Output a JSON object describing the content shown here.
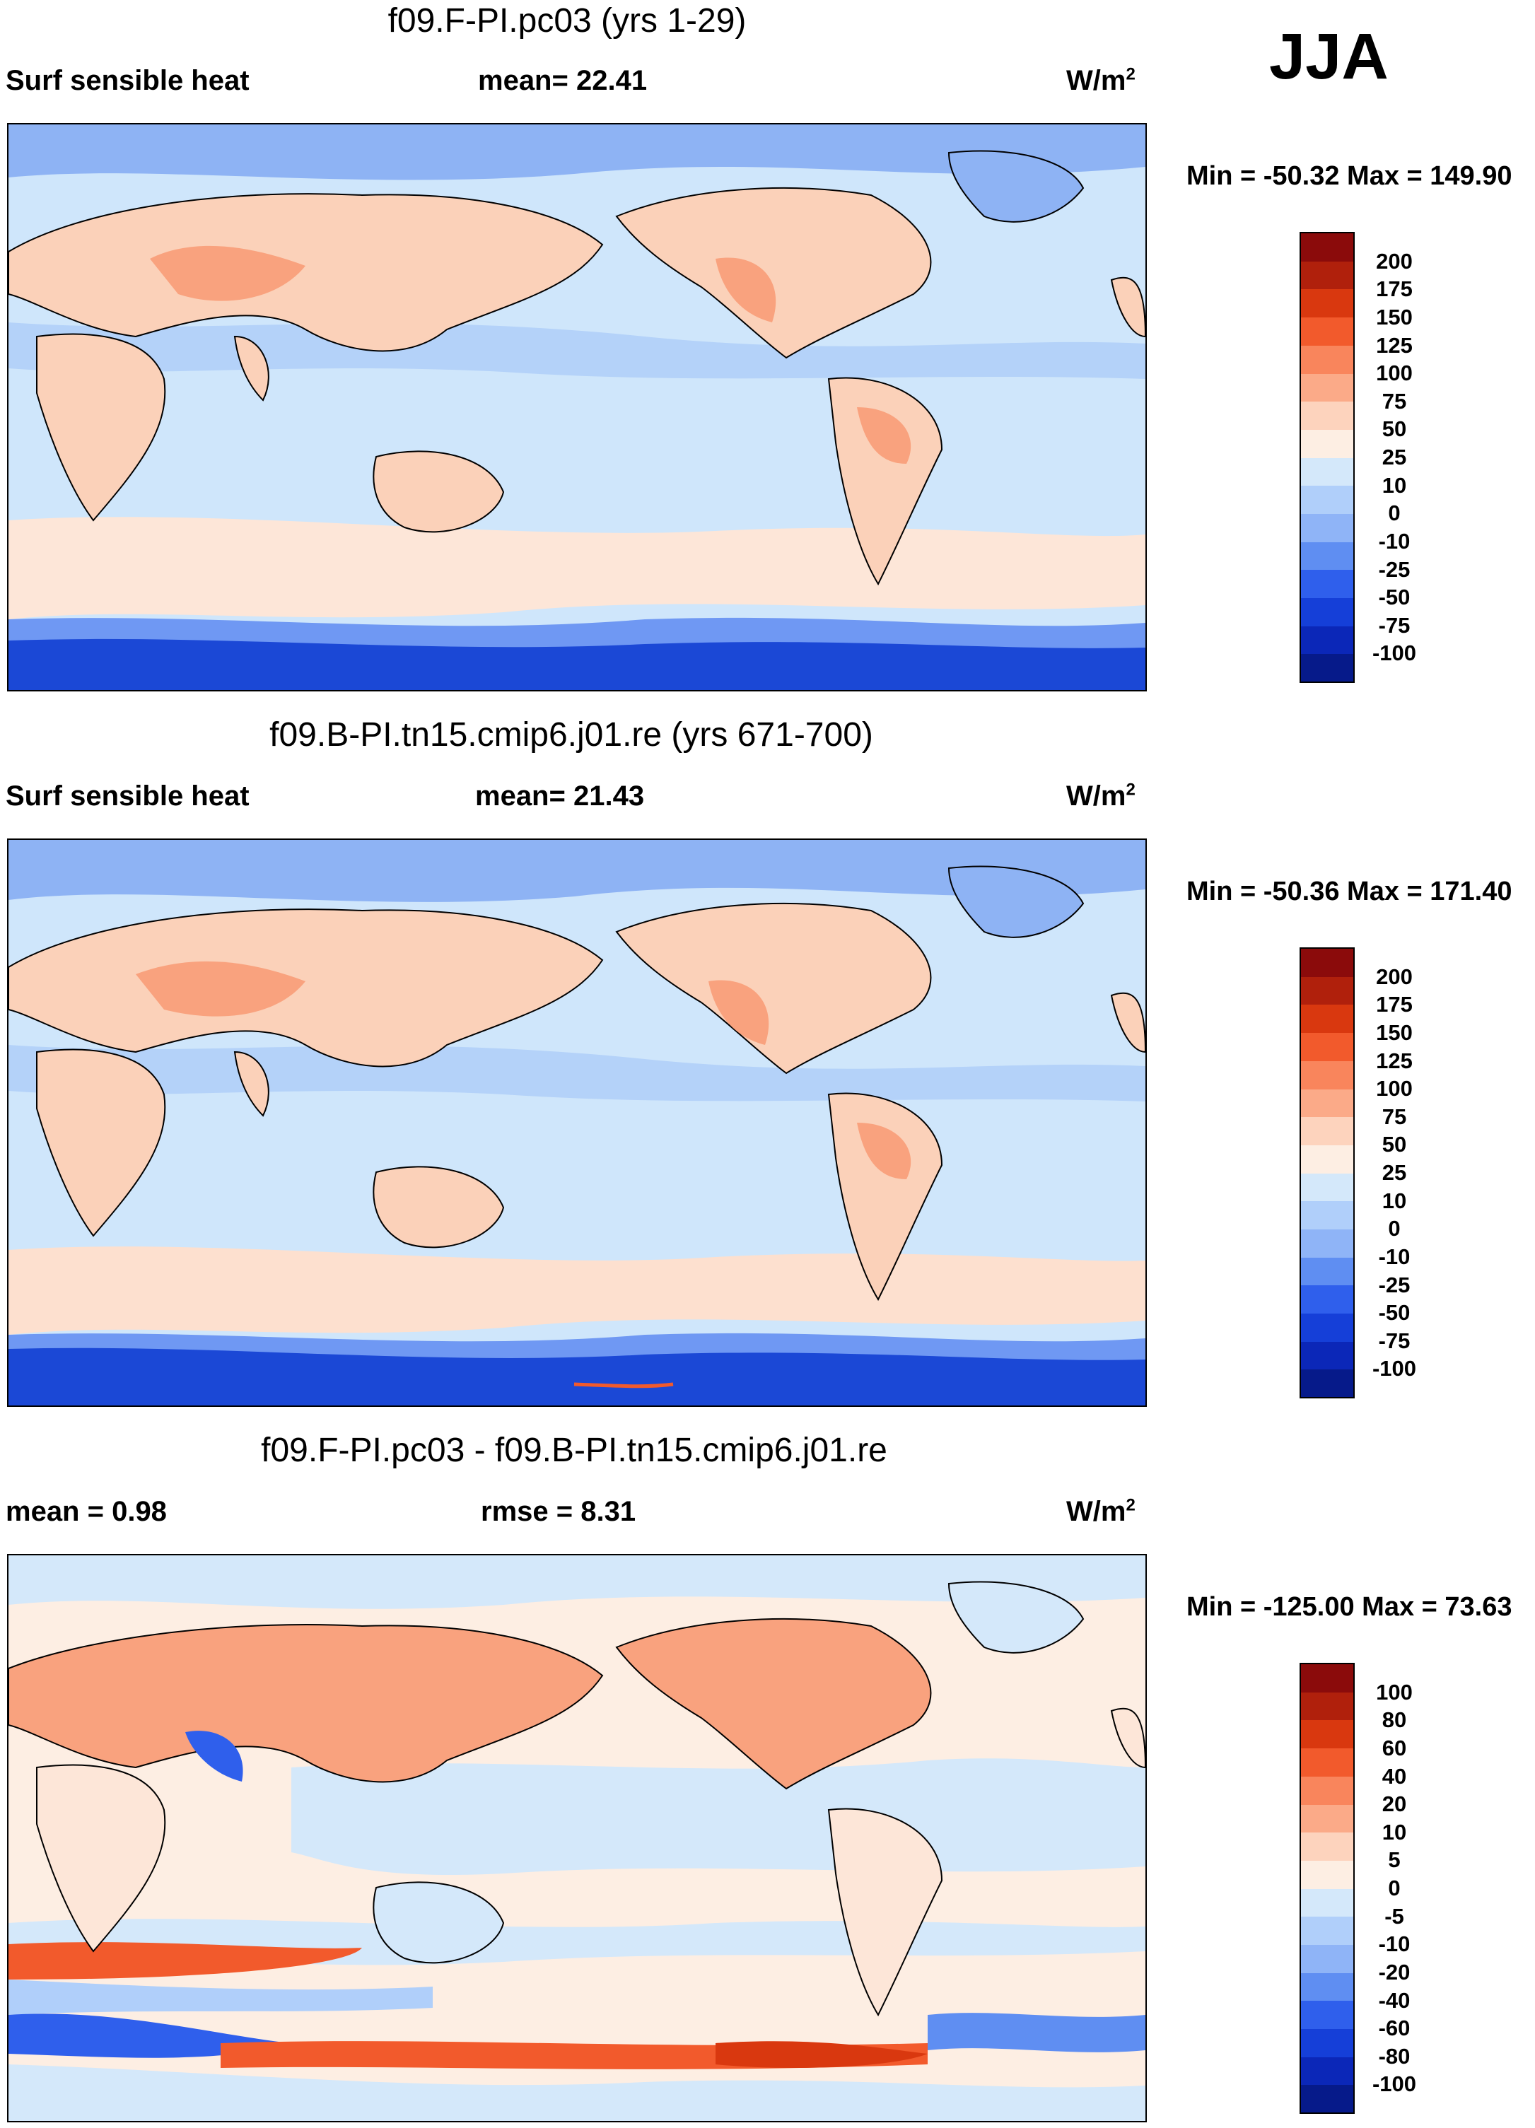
{
  "season": "JJA",
  "panels": [
    {
      "title": "f09.F-PI.pc03 (yrs 1-29)",
      "left_label": "Surf sensible heat",
      "mid_label": "mean=  22.41",
      "units_main": "W/m",
      "units_sup": "2",
      "minmax": "Min = -50.32 Max = 149.90",
      "colorbar_labels": [
        "200",
        "175",
        "150",
        "125",
        "100",
        "75",
        "50",
        "25",
        "10",
        "0",
        "-10",
        "-25",
        "-50",
        "-75",
        "-100"
      ]
    },
    {
      "title": "f09.B-PI.tn15.cmip6.j01.re (yrs 671-700)",
      "left_label": "Surf sensible heat",
      "mid_label": "mean=  21.43",
      "units_main": "W/m",
      "units_sup": "2",
      "minmax": "Min = -50.36 Max = 171.40",
      "colorbar_labels": [
        "200",
        "175",
        "150",
        "125",
        "100",
        "75",
        "50",
        "25",
        "10",
        "0",
        "-10",
        "-25",
        "-50",
        "-75",
        "-100"
      ]
    },
    {
      "title": "f09.F-PI.pc03 - f09.B-PI.tn15.cmip6.j01.re",
      "left_label": "mean =   0.98",
      "mid_label": "rmse =    8.31",
      "units_main": "W/m",
      "units_sup": "2",
      "minmax": "Min = -125.00 Max =  73.63",
      "colorbar_labels": [
        "100",
        "80",
        "60",
        "40",
        "20",
        "10",
        "5",
        "0",
        "-5",
        "-10",
        "-20",
        "-40",
        "-60",
        "-80",
        "-100"
      ]
    }
  ],
  "colors": {
    "palette_top_to_bottom": [
      "#8b0b0b",
      "#b0200c",
      "#d9380f",
      "#f25a2c",
      "#f9855c",
      "#fbaa88",
      "#fdd3bd",
      "#fdeee3",
      "#d4e8fa",
      "#b0cffa",
      "#8fb4f7",
      "#5f8ef2",
      "#2f5fec",
      "#153fd8",
      "#0b27b8",
      "#061a8a"
    ],
    "ocean": "#cfe6fb",
    "land_warm": "#fbd1b9",
    "land_hot": "#f9a27e",
    "arctic": "#8eb3f4",
    "antarctic": "#1b48d6"
  },
  "chart_data": [
    {
      "type": "heatmap",
      "title": "f09.F-PI.pc03 (yrs 1-29)",
      "field": "Surf sensible heat",
      "units": "W/m2",
      "mean": 22.41,
      "min": -50.32,
      "max": 149.9,
      "levels": [
        -100,
        -75,
        -50,
        -25,
        -10,
        0,
        10,
        25,
        50,
        75,
        100,
        125,
        150,
        175,
        200
      ]
    },
    {
      "type": "heatmap",
      "title": "f09.B-PI.tn15.cmip6.j01.re (yrs 671-700)",
      "field": "Surf sensible heat",
      "units": "W/m2",
      "mean": 21.43,
      "min": -50.36,
      "max": 171.4,
      "levels": [
        -100,
        -75,
        -50,
        -25,
        -10,
        0,
        10,
        25,
        50,
        75,
        100,
        125,
        150,
        175,
        200
      ]
    },
    {
      "type": "heatmap",
      "title": "f09.F-PI.pc03 - f09.B-PI.tn15.cmip6.j01.re",
      "units": "W/m2",
      "mean": 0.98,
      "rmse": 8.31,
      "min": -125.0,
      "max": 73.63,
      "levels": [
        -100,
        -80,
        -60,
        -40,
        -20,
        -10,
        -5,
        0,
        5,
        10,
        20,
        40,
        60,
        80,
        100
      ]
    }
  ]
}
